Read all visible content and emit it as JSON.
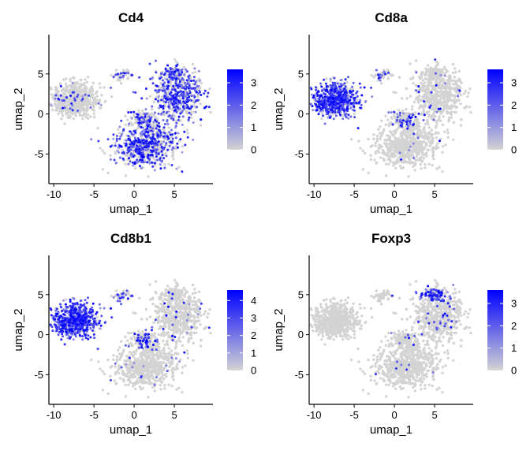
{
  "colors": {
    "low": "#d3d3d3",
    "high": "#0000ff",
    "axis": "#000000",
    "background": "#ffffff"
  },
  "chart_data": [
    {
      "type": "scatter",
      "title": "Cd4",
      "xlabel": "umap_1",
      "ylabel": "umap_2",
      "xticks": [
        "-10",
        "-5",
        "0",
        "5"
      ],
      "yticks": [
        "5",
        "0",
        "-5"
      ],
      "xlim": [
        -10.6,
        9.8
      ],
      "ylim": [
        -8.7,
        9.9
      ],
      "legend_ticks": [
        "0",
        "1",
        "2",
        "3"
      ],
      "legend_max": 3.6,
      "legend_position": "right",
      "expression": {
        "cd8_cluster": 0.06,
        "lower_lobe": 0.6,
        "upper_right_lobe": 0.6,
        "middle_blob": 0.4,
        "treg_region": 0.5,
        "small_islands": 0.3
      }
    },
    {
      "type": "scatter",
      "title": "Cd8a",
      "xlabel": "umap_1",
      "ylabel": "umap_2",
      "xticks": [
        "-10",
        "-5",
        "0",
        "5"
      ],
      "yticks": [
        "5",
        "0",
        "-5"
      ],
      "xlim": [
        -10.6,
        9.8
      ],
      "ylim": [
        -8.7,
        9.9
      ],
      "legend_ticks": [
        "0",
        "1",
        "2",
        "3"
      ],
      "legend_max": 3.6,
      "legend_position": "right",
      "expression": {
        "cd8_cluster": 0.88,
        "lower_lobe": 0.01,
        "upper_right_lobe": 0.03,
        "middle_blob": 0.25,
        "treg_region": 0.02,
        "small_islands": 0.2
      }
    },
    {
      "type": "scatter",
      "title": "Cd8b1",
      "xlabel": "umap_1",
      "ylabel": "umap_2",
      "xticks": [
        "-10",
        "-5",
        "0",
        "5"
      ],
      "yticks": [
        "5",
        "0",
        "-5"
      ],
      "xlim": [
        -10.6,
        9.8
      ],
      "ylim": [
        -8.7,
        9.9
      ],
      "legend_ticks": [
        "0",
        "1",
        "2",
        "3",
        "4"
      ],
      "legend_max": 4.6,
      "legend_position": "right",
      "expression": {
        "cd8_cluster": 0.92,
        "lower_lobe": 0.03,
        "upper_right_lobe": 0.05,
        "middle_blob": 0.35,
        "treg_region": 0.03,
        "small_islands": 0.25
      }
    },
    {
      "type": "scatter",
      "title": "Foxp3",
      "xlabel": "umap_1",
      "ylabel": "umap_2",
      "xticks": [
        "-10",
        "-5",
        "0",
        "5"
      ],
      "yticks": [
        "5",
        "0",
        "-5"
      ],
      "xlim": [
        -10.6,
        9.8
      ],
      "ylim": [
        -8.7,
        9.9
      ],
      "legend_ticks": [
        "0",
        "1",
        "2",
        "3"
      ],
      "legend_max": 3.6,
      "legend_position": "right",
      "expression": {
        "cd8_cluster": 0.0,
        "lower_lobe": 0.01,
        "upper_right_lobe": 0.06,
        "middle_blob": 0.05,
        "treg_region": 0.75,
        "small_islands": 0.05
      }
    }
  ]
}
